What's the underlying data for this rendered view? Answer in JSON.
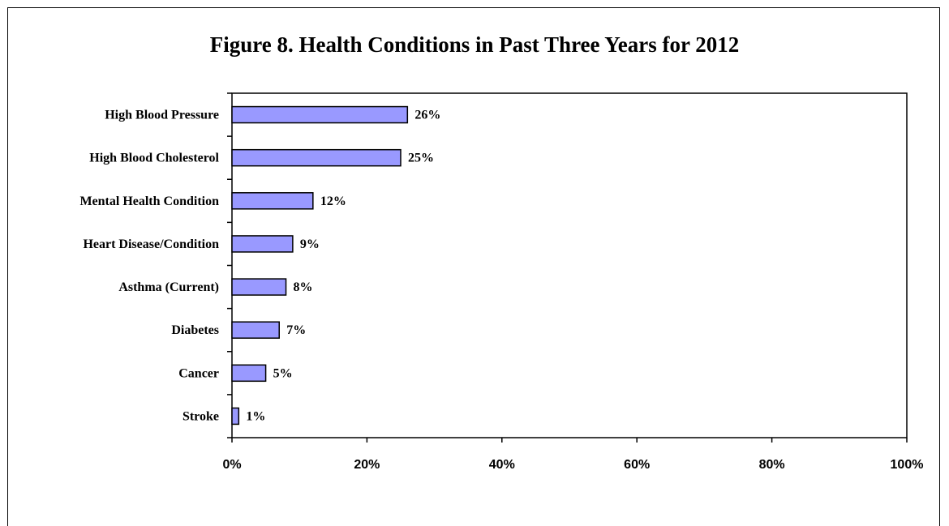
{
  "chart_data": {
    "type": "bar",
    "orientation": "horizontal",
    "title": "Figure 8. Health Conditions in Past Three Years for 2012",
    "categories": [
      "High Blood Pressure",
      "High Blood Cholesterol",
      "Mental Health Condition",
      "Heart Disease/Condition",
      "Asthma (Current)",
      "Diabetes",
      "Cancer",
      "Stroke"
    ],
    "values": [
      26,
      25,
      12,
      9,
      8,
      7,
      5,
      1
    ],
    "value_labels": [
      "26%",
      "25%",
      "12%",
      "9%",
      "8%",
      "7%",
      "5%",
      "1%"
    ],
    "xlim": [
      0,
      100
    ],
    "x_ticks": [
      "0%",
      "20%",
      "40%",
      "60%",
      "80%",
      "100%"
    ],
    "bar_color": "#9999ff",
    "grid": false,
    "legend": "none"
  }
}
